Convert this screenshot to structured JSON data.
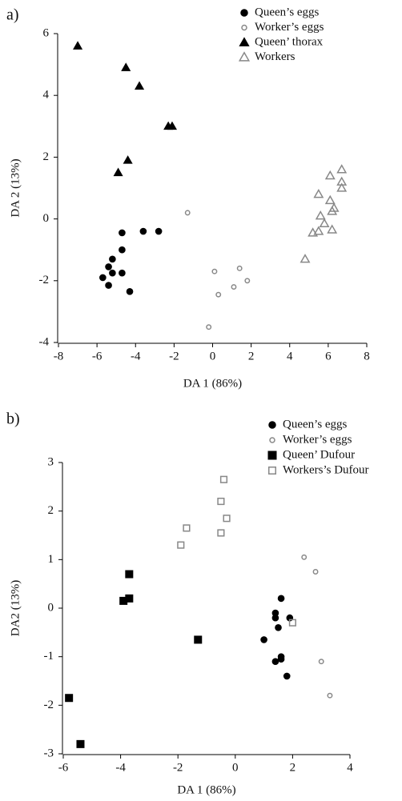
{
  "chart_data": [
    {
      "type": "scatter",
      "panel_label": "a)",
      "xlabel": "DA 1 (86%)",
      "ylabel": "DA 2 (13%)",
      "xlim": [
        -8,
        8
      ],
      "ylim": [
        -4,
        6
      ],
      "xticks": [
        -8,
        -6,
        -4,
        -2,
        0,
        2,
        4,
        6,
        8
      ],
      "yticks": [
        -4,
        -2,
        0,
        2,
        4,
        6
      ],
      "legend": "upper right",
      "series": [
        {
          "name": "Queen’s eggs",
          "color": "#000000",
          "marker": "circle",
          "filled": true,
          "x": [
            -4.7,
            -3.6,
            -2.8,
            -4.7,
            -5.2,
            -5.4,
            -5.7,
            -5.2,
            -4.7,
            -5.4,
            -4.3
          ],
          "y": [
            -0.45,
            -0.4,
            -0.4,
            -1.0,
            -1.3,
            -1.55,
            -1.9,
            -1.75,
            -1.75,
            -2.15,
            -2.35
          ]
        },
        {
          "name": "Worker’s eggs",
          "color": "#888888",
          "marker": "circle",
          "filled": false,
          "x": [
            -1.3,
            0.1,
            1.4,
            1.1,
            1.8,
            0.3,
            -0.2
          ],
          "y": [
            0.2,
            -1.7,
            -1.6,
            -2.2,
            -2.0,
            -2.45,
            -3.5
          ]
        },
        {
          "name": "Queen’ thorax",
          "color": "#000000",
          "marker": "triangle",
          "filled": true,
          "x": [
            -7.0,
            -4.5,
            -3.8,
            -2.3,
            -2.1,
            -4.4,
            -4.9
          ],
          "y": [
            5.6,
            4.9,
            4.3,
            3.0,
            3.0,
            1.9,
            1.5
          ]
        },
        {
          "name": "Workers",
          "color": "#888888",
          "marker": "triangle",
          "filled": false,
          "x": [
            6.7,
            6.1,
            6.7,
            6.7,
            5.5,
            6.1,
            6.3,
            6.2,
            5.6,
            5.8,
            6.2,
            5.5,
            5.2,
            4.8
          ],
          "y": [
            1.6,
            1.4,
            1.2,
            1.0,
            0.8,
            0.6,
            0.35,
            0.25,
            0.1,
            -0.15,
            -0.35,
            -0.4,
            -0.45,
            -1.3
          ]
        }
      ]
    },
    {
      "type": "scatter",
      "panel_label": "b)",
      "xlabel": "DA 1 (86%)",
      "ylabel": "DA2 (13%)",
      "xlim": [
        -6,
        4
      ],
      "ylim": [
        -3,
        3
      ],
      "xticks": [
        -6,
        -4,
        -2,
        0,
        2,
        4
      ],
      "yticks": [
        -3,
        -2,
        -1,
        0,
        1,
        2,
        3
      ],
      "legend": "upper right",
      "series": [
        {
          "name": "Queen’s eggs",
          "color": "#000000",
          "marker": "circle",
          "filled": true,
          "x": [
            1.6,
            1.4,
            1.9,
            1.4,
            1.5,
            1.0,
            1.6,
            1.6,
            1.4,
            1.8
          ],
          "y": [
            0.2,
            -0.1,
            -0.2,
            -0.2,
            -0.4,
            -0.65,
            -1.0,
            -1.05,
            -1.1,
            -1.4
          ]
        },
        {
          "name": "Worker’s eggs",
          "color": "#888888",
          "marker": "circle",
          "filled": false,
          "x": [
            2.4,
            2.8,
            3.0,
            3.3
          ],
          "y": [
            1.05,
            0.75,
            -1.1,
            -1.8
          ]
        },
        {
          "name": "Queen’ Dufour",
          "color": "#000000",
          "marker": "square",
          "filled": true,
          "x": [
            -3.7,
            -3.7,
            -3.9,
            -1.3,
            -5.8,
            -5.4
          ],
          "y": [
            0.7,
            0.2,
            0.15,
            -0.65,
            -1.85,
            -2.8
          ]
        },
        {
          "name": "Workers’s Dufour",
          "color": "#888888",
          "marker": "square",
          "filled": false,
          "x": [
            -0.4,
            -0.5,
            -1.7,
            -1.9,
            -0.3,
            -0.5,
            2.0
          ],
          "y": [
            2.65,
            2.2,
            1.65,
            1.3,
            1.85,
            1.55,
            -0.3
          ]
        }
      ]
    }
  ]
}
